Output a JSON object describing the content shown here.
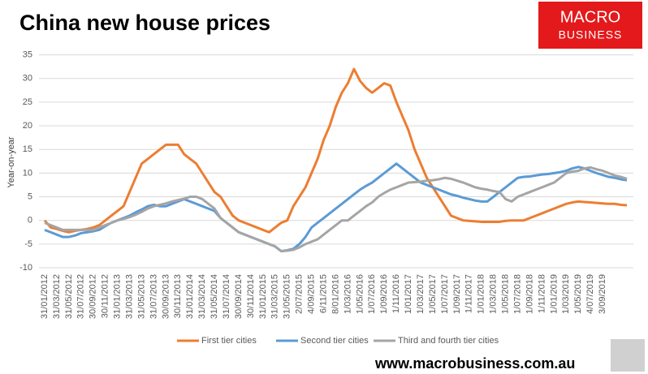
{
  "chart_data": {
    "type": "line",
    "title": "China new house prices",
    "y_label": "Year-on-year",
    "categories": [
      "31/01/2012",
      null,
      "31/03/2012",
      null,
      "31/05/2012",
      null,
      "31/07/2012",
      null,
      "30/09/2012",
      null,
      "30/11/2012",
      null,
      "31/01/2013",
      null,
      "31/03/2013",
      null,
      "31/05/2013",
      null,
      "31/07/2013",
      null,
      "30/09/2013",
      null,
      "30/11/2013",
      null,
      "31/01/2014",
      null,
      "31/03/2014",
      null,
      "31/05/2014",
      null,
      "31/07/2014",
      null,
      "30/09/2014",
      null,
      "30/11/2014",
      null,
      "31/01/2015",
      null,
      "31/03/2015",
      null,
      "31/05/2015",
      null,
      "2/07/2015",
      null,
      "4/09/2015",
      null,
      "6/11/2015",
      null,
      "8/01/2016",
      null,
      "1/03/2016",
      null,
      "1/05/2016",
      null,
      "1/07/2016",
      null,
      "1/09/2016",
      null,
      "1/11/2016",
      null,
      "1/01/2017",
      null,
      "1/03/2017",
      null,
      "1/05/2017",
      null,
      "1/07/2017",
      null,
      "1/09/2017",
      null,
      "1/11/2017",
      null,
      "1/01/2018",
      null,
      "1/03/2018",
      null,
      "1/05/2018",
      null,
      "1/07/2018",
      null,
      "1/09/2018",
      null,
      "1/11/2018",
      null,
      "1/01/2019",
      null,
      "1/03/2019",
      null,
      "1/05/2019",
      null,
      "4/07/2019",
      null,
      "3/09/2019",
      null,
      null,
      null,
      null
    ],
    "series": [
      {
        "name": "First tier cities",
        "color": "#ed7d31",
        "values": [
          0,
          -1.5,
          -1.8,
          -2.2,
          -2.5,
          -2.2,
          -2,
          -1.8,
          -1.5,
          -1,
          0,
          1,
          2,
          3,
          6,
          9,
          12,
          13,
          14,
          15,
          16,
          16,
          16,
          14,
          13,
          12,
          10,
          8,
          6,
          5,
          3,
          1,
          0,
          -0.5,
          -1,
          -1.5,
          -2,
          -2.5,
          -1.5,
          -0.5,
          0,
          3,
          5,
          7,
          10,
          13,
          17,
          20,
          24,
          27,
          29,
          32,
          29.5,
          28,
          27,
          28,
          29,
          28.5,
          25,
          22,
          19,
          15,
          12,
          9,
          7,
          5,
          3,
          1,
          0.5,
          0,
          -0.1,
          -0.2,
          -0.3,
          -0.3,
          -0.3,
          -0.3,
          -0.1,
          0,
          0,
          0,
          0.5,
          1,
          1.5,
          2,
          2.5,
          3,
          3.5,
          3.8,
          4,
          3.9,
          3.8,
          3.7,
          3.6,
          3.5,
          3.5,
          3.3,
          3.2
        ]
      },
      {
        "name": "Second tier cities",
        "color": "#5b9bd5",
        "values": [
          -2,
          -2.5,
          -3,
          -3.5,
          -3.5,
          -3.2,
          -2.7,
          -2.5,
          -2.3,
          -2,
          -1.2,
          -0.5,
          0,
          0.5,
          1,
          1.7,
          2.3,
          3,
          3.3,
          3,
          3,
          3.5,
          4,
          4.5,
          4,
          3.5,
          3,
          2.5,
          2,
          0.5,
          -0.5,
          -1.5,
          -2.5,
          -3,
          -3.5,
          -4,
          -4.5,
          -5,
          -5.5,
          -6.5,
          -6.3,
          -6,
          -5,
          -3.5,
          -1.5,
          -0.5,
          0.5,
          1.5,
          2.5,
          3.5,
          4.5,
          5.5,
          6.5,
          7.3,
          8,
          9,
          10,
          11,
          12,
          11,
          10,
          9,
          8,
          7.5,
          7,
          6.5,
          6,
          5.5,
          5.2,
          4.8,
          4.5,
          4.2,
          4,
          4,
          5,
          6,
          7,
          8,
          9,
          9.2,
          9.3,
          9.5,
          9.7,
          9.8,
          10,
          10.2,
          10.5,
          11,
          11.3,
          11,
          10.5,
          10,
          9.6,
          9.2,
          9,
          8.7,
          8.5
        ]
      },
      {
        "name": "Third and fourth tier cities",
        "color": "#a5a5a5",
        "values": [
          -0.5,
          -1,
          -1.5,
          -2,
          -2,
          -2,
          -2,
          -2,
          -2,
          -1.5,
          -1,
          -0.5,
          0,
          0.3,
          0.7,
          1.2,
          1.8,
          2.5,
          3,
          3.3,
          3.6,
          4,
          4.3,
          4.6,
          5,
          5,
          4.5,
          3.5,
          2.5,
          0.5,
          -0.5,
          -1.5,
          -2.5,
          -3,
          -3.5,
          -4,
          -4.5,
          -5,
          -5.5,
          -6.5,
          -6.4,
          -6.2,
          -5.7,
          -5,
          -4.5,
          -4,
          -3,
          -2,
          -1,
          0,
          0,
          1,
          2,
          3,
          3.8,
          5,
          5.8,
          6.5,
          7,
          7.5,
          8,
          8.1,
          8.2,
          8.4,
          8.5,
          8.7,
          9,
          8.8,
          8.4,
          8,
          7.5,
          7,
          6.7,
          6.5,
          6.2,
          6,
          4.5,
          4,
          5,
          5.5,
          6,
          6.5,
          7,
          7.5,
          8,
          9,
          10,
          10.3,
          10.5,
          11,
          11.2,
          10.8,
          10.5,
          10,
          9.5,
          9.2,
          8.8
        ]
      }
    ],
    "ylim": [
      -10,
      35
    ],
    "yticks": [
      -10,
      -5,
      0,
      5,
      10,
      15,
      20,
      25,
      30,
      35
    ],
    "grid": true,
    "legend": "bottom"
  },
  "logo": {
    "line1": "MACRO",
    "line2": "BUSINESS"
  },
  "source_url": "www.macrobusiness.com.au"
}
